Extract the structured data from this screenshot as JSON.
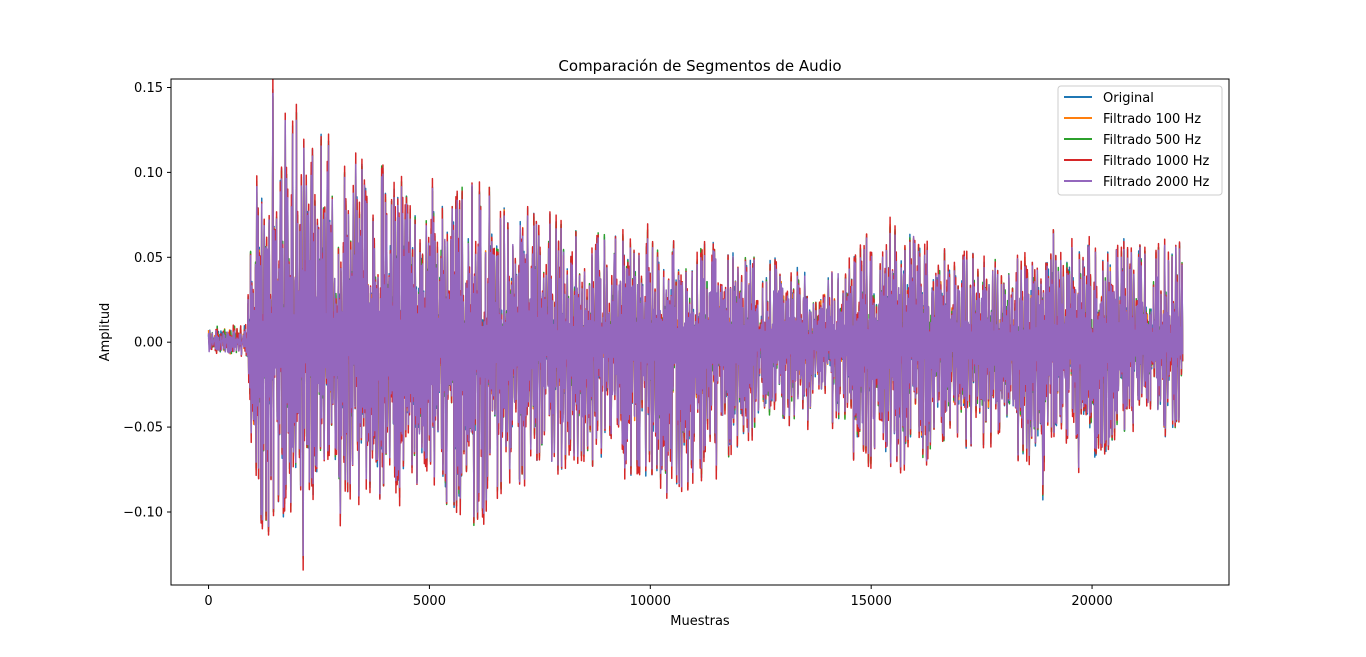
{
  "chart_data": {
    "type": "line",
    "title": "Comparación de Segmentos de Audio",
    "xlabel": "Muestras",
    "ylabel": "Amplitud",
    "xlim": [
      -850,
      23100
    ],
    "ylim": [
      -0.143,
      0.155
    ],
    "xticks": [
      0,
      5000,
      10000,
      15000,
      20000
    ],
    "xtick_labels": [
      "0",
      "5000",
      "10000",
      "15000",
      "20000"
    ],
    "yticks": [
      -0.1,
      -0.05,
      0.0,
      0.05,
      0.1,
      0.15
    ],
    "ytick_labels": [
      "−0.10",
      "−0.05",
      "0.00",
      "0.05",
      "0.10",
      "0.15"
    ],
    "legend_position": "upper-right",
    "grid": false,
    "n_samples": 22050,
    "envelope": {
      "x": [
        0,
        850,
        900,
        1000,
        1300,
        1600,
        2000,
        2500,
        3000,
        4000,
        5000,
        6000,
        7000,
        8000,
        9000,
        10000,
        10600,
        12000,
        13000,
        14000,
        14800,
        15200,
        16000,
        17000,
        18000,
        18900,
        19000,
        19500,
        20000,
        21000,
        22050
      ],
      "max": [
        0.006,
        0.008,
        0.05,
        0.078,
        0.148,
        0.145,
        0.13,
        0.12,
        0.11,
        0.1,
        0.09,
        0.095,
        0.08,
        0.07,
        0.06,
        0.065,
        0.06,
        0.05,
        0.045,
        0.035,
        0.06,
        0.07,
        0.065,
        0.05,
        0.05,
        0.045,
        0.065,
        0.07,
        0.06,
        0.06,
        0.06
      ],
      "min": [
        -0.004,
        -0.006,
        -0.03,
        -0.08,
        -0.12,
        -0.12,
        -0.128,
        -0.12,
        -0.105,
        -0.09,
        -0.085,
        -0.11,
        -0.08,
        -0.075,
        -0.07,
        -0.085,
        -0.1,
        -0.06,
        -0.05,
        -0.045,
        -0.07,
        -0.075,
        -0.07,
        -0.06,
        -0.055,
        -0.09,
        -0.08,
        -0.075,
        -0.065,
        -0.06,
        -0.055
      ]
    },
    "series": [
      {
        "name": "Original",
        "color": "#1f77b4"
      },
      {
        "name": "Filtrado 100 Hz",
        "color": "#ff7f0e"
      },
      {
        "name": "Filtrado 500 Hz",
        "color": "#2ca02c"
      },
      {
        "name": "Filtrado 1000 Hz",
        "color": "#d62728"
      },
      {
        "name": "Filtrado 2000 Hz",
        "color": "#9467bd"
      }
    ]
  }
}
